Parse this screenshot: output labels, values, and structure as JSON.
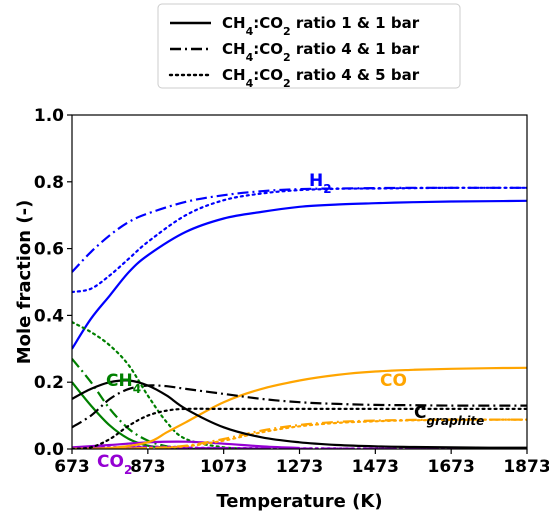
{
  "chart_data": {
    "type": "line",
    "xlabel": "Temperature (K)",
    "ylabel": "Mole fraction (-)",
    "xlim": [
      673,
      1873
    ],
    "ylim": [
      0.0,
      1.0
    ],
    "xticks": [
      673,
      873,
      1073,
      1273,
      1473,
      1673,
      1873
    ],
    "yticks": [
      0.0,
      0.2,
      0.4,
      0.6,
      0.8,
      1.0
    ],
    "ytick_labels": [
      "0.0",
      "0.2",
      "0.4",
      "0.6",
      "0.8",
      "1.0"
    ],
    "grid": false,
    "legend": {
      "placement": "top-center, outside plot",
      "entries": [
        {
          "prefix": "CH",
          "sub1": "4",
          "mid": ":CO",
          "sub2": "2",
          "suffix": " ratio 1 & 1 bar",
          "style": "solid"
        },
        {
          "prefix": "CH",
          "sub1": "4",
          "mid": ":CO",
          "sub2": "2",
          "suffix": " ratio 4 & 1 bar",
          "style": "dashdot"
        },
        {
          "prefix": "CH",
          "sub1": "4",
          "mid": ":CO",
          "sub2": "2",
          "suffix": " ratio 4 & 5 bar",
          "style": "dotted"
        }
      ]
    },
    "annotations": [
      {
        "species": "H2",
        "base": "H",
        "sub": "2",
        "subitalic": false,
        "color": "#0000ff"
      },
      {
        "species": "CH4",
        "base": "CH",
        "sub": "4",
        "subitalic": false,
        "color": "#008000"
      },
      {
        "species": "CO2",
        "base": "CO",
        "sub": "2",
        "subitalic": false,
        "color": "#9400d3"
      },
      {
        "species": "CO",
        "base": "CO",
        "sub": "",
        "subitalic": false,
        "color": "#ffa500"
      },
      {
        "species": "Cgraphite",
        "base": "C",
        "sub": "graphite",
        "subitalic": true,
        "color": "#000000"
      }
    ],
    "series": [
      {
        "species": "H2",
        "style": "solid",
        "color": "#0000ff",
        "x": [
          673,
          723,
          773,
          823,
          873,
          973,
          1073,
          1173,
          1273,
          1373,
          1473,
          1573,
          1673,
          1773,
          1873
        ],
        "y": [
          0.3,
          0.39,
          0.46,
          0.53,
          0.58,
          0.65,
          0.69,
          0.71,
          0.725,
          0.732,
          0.736,
          0.739,
          0.741,
          0.742,
          0.743
        ]
      },
      {
        "species": "H2",
        "style": "dashdot",
        "color": "#0000ff",
        "x": [
          673,
          723,
          773,
          823,
          873,
          973,
          1073,
          1173,
          1273,
          1373,
          1473,
          1573,
          1673,
          1773,
          1873
        ],
        "y": [
          0.53,
          0.59,
          0.64,
          0.68,
          0.705,
          0.74,
          0.76,
          0.772,
          0.778,
          0.78,
          0.781,
          0.782,
          0.782,
          0.782,
          0.782
        ]
      },
      {
        "species": "H2",
        "style": "dotted",
        "color": "#0000ff",
        "x": [
          673,
          723,
          773,
          823,
          873,
          973,
          1073,
          1173,
          1273,
          1373,
          1473,
          1573,
          1673,
          1773,
          1873
        ],
        "y": [
          0.47,
          0.48,
          0.52,
          0.57,
          0.62,
          0.7,
          0.745,
          0.765,
          0.775,
          0.779,
          0.78,
          0.781,
          0.782,
          0.782,
          0.782
        ]
      },
      {
        "species": "CH4",
        "style": "solid",
        "color": "#008000",
        "x": [
          673,
          723,
          773,
          823,
          873,
          923,
          973,
          1073
        ],
        "y": [
          0.2,
          0.13,
          0.07,
          0.03,
          0.01,
          0.004,
          0.001,
          0.0
        ]
      },
      {
        "species": "CH4",
        "style": "dashdot",
        "color": "#008000",
        "x": [
          673,
          723,
          773,
          823,
          873,
          923,
          973,
          1073
        ],
        "y": [
          0.27,
          0.2,
          0.12,
          0.06,
          0.025,
          0.008,
          0.002,
          0.0
        ]
      },
      {
        "species": "CH4",
        "style": "dotted",
        "color": "#008000",
        "x": [
          673,
          723,
          773,
          823,
          873,
          923,
          973,
          1073,
          1173
        ],
        "y": [
          0.38,
          0.35,
          0.31,
          0.25,
          0.16,
          0.08,
          0.03,
          0.005,
          0.0
        ]
      },
      {
        "species": "CO2",
        "style": "solid",
        "color": "#9400d3",
        "x": [
          673,
          773,
          873,
          973,
          1073,
          1173,
          1273
        ],
        "y": [
          0.005,
          0.012,
          0.02,
          0.022,
          0.016,
          0.008,
          0.003
        ]
      },
      {
        "species": "CO2",
        "style": "dashdot",
        "color": "#9400d3",
        "x": [
          673,
          773,
          873,
          973,
          1073,
          1873
        ],
        "y": [
          0.002,
          0.004,
          0.005,
          0.004,
          0.002,
          0.0
        ]
      },
      {
        "species": "CO2",
        "style": "dotted",
        "color": "#9400d3",
        "x": [
          673,
          773,
          873,
          973,
          1073,
          1873
        ],
        "y": [
          0.002,
          0.005,
          0.007,
          0.006,
          0.003,
          0.0
        ]
      },
      {
        "species": "CO",
        "style": "solid",
        "color": "#ffa500",
        "x": [
          673,
          773,
          873,
          923,
          973,
          1073,
          1173,
          1273,
          1373,
          1473,
          1573,
          1673,
          1773,
          1873
        ],
        "y": [
          0.0,
          0.003,
          0.02,
          0.05,
          0.08,
          0.14,
          0.18,
          0.205,
          0.222,
          0.232,
          0.237,
          0.24,
          0.242,
          0.243
        ]
      },
      {
        "species": "CO",
        "style": "dashdot",
        "color": "#ffa500",
        "x": [
          673,
          873,
          973,
          1073,
          1173,
          1273,
          1373,
          1473,
          1573,
          1673,
          1773,
          1873
        ],
        "y": [
          0.0,
          0.003,
          0.01,
          0.03,
          0.055,
          0.072,
          0.081,
          0.085,
          0.087,
          0.088,
          0.088,
          0.088
        ]
      },
      {
        "species": "CO",
        "style": "dotted",
        "color": "#ffa500",
        "x": [
          673,
          873,
          973,
          1073,
          1173,
          1273,
          1373,
          1473,
          1573,
          1673,
          1773,
          1873
        ],
        "y": [
          0.0,
          0.002,
          0.008,
          0.025,
          0.05,
          0.068,
          0.078,
          0.083,
          0.086,
          0.087,
          0.088,
          0.088
        ]
      },
      {
        "species": "Cgraphite",
        "style": "solid",
        "color": "#000000",
        "x": [
          673,
          723,
          773,
          823,
          873,
          923,
          973,
          1073,
          1173,
          1273,
          1373,
          1473,
          1573,
          1673,
          1773,
          1873
        ],
        "y": [
          0.15,
          0.18,
          0.2,
          0.205,
          0.19,
          0.16,
          0.12,
          0.065,
          0.035,
          0.02,
          0.012,
          0.008,
          0.006,
          0.005,
          0.004,
          0.004
        ]
      },
      {
        "species": "Cgraphite",
        "style": "dashdot",
        "color": "#000000",
        "x": [
          673,
          723,
          773,
          823,
          873,
          923,
          973,
          1073,
          1173,
          1273,
          1373,
          1473,
          1573,
          1673,
          1773,
          1873
        ],
        "y": [
          0.065,
          0.1,
          0.15,
          0.18,
          0.19,
          0.188,
          0.18,
          0.165,
          0.15,
          0.14,
          0.135,
          0.132,
          0.131,
          0.13,
          0.13,
          0.13
        ]
      },
      {
        "species": "Cgraphite",
        "style": "dotted",
        "color": "#000000",
        "x": [
          673,
          723,
          773,
          823,
          873,
          923,
          973,
          1073,
          1173,
          1273,
          1373,
          1473,
          1573,
          1673,
          1773,
          1873
        ],
        "y": [
          0.0,
          0.005,
          0.03,
          0.07,
          0.1,
          0.115,
          0.12,
          0.12,
          0.12,
          0.12,
          0.12,
          0.12,
          0.12,
          0.12,
          0.12,
          0.12
        ]
      }
    ]
  }
}
